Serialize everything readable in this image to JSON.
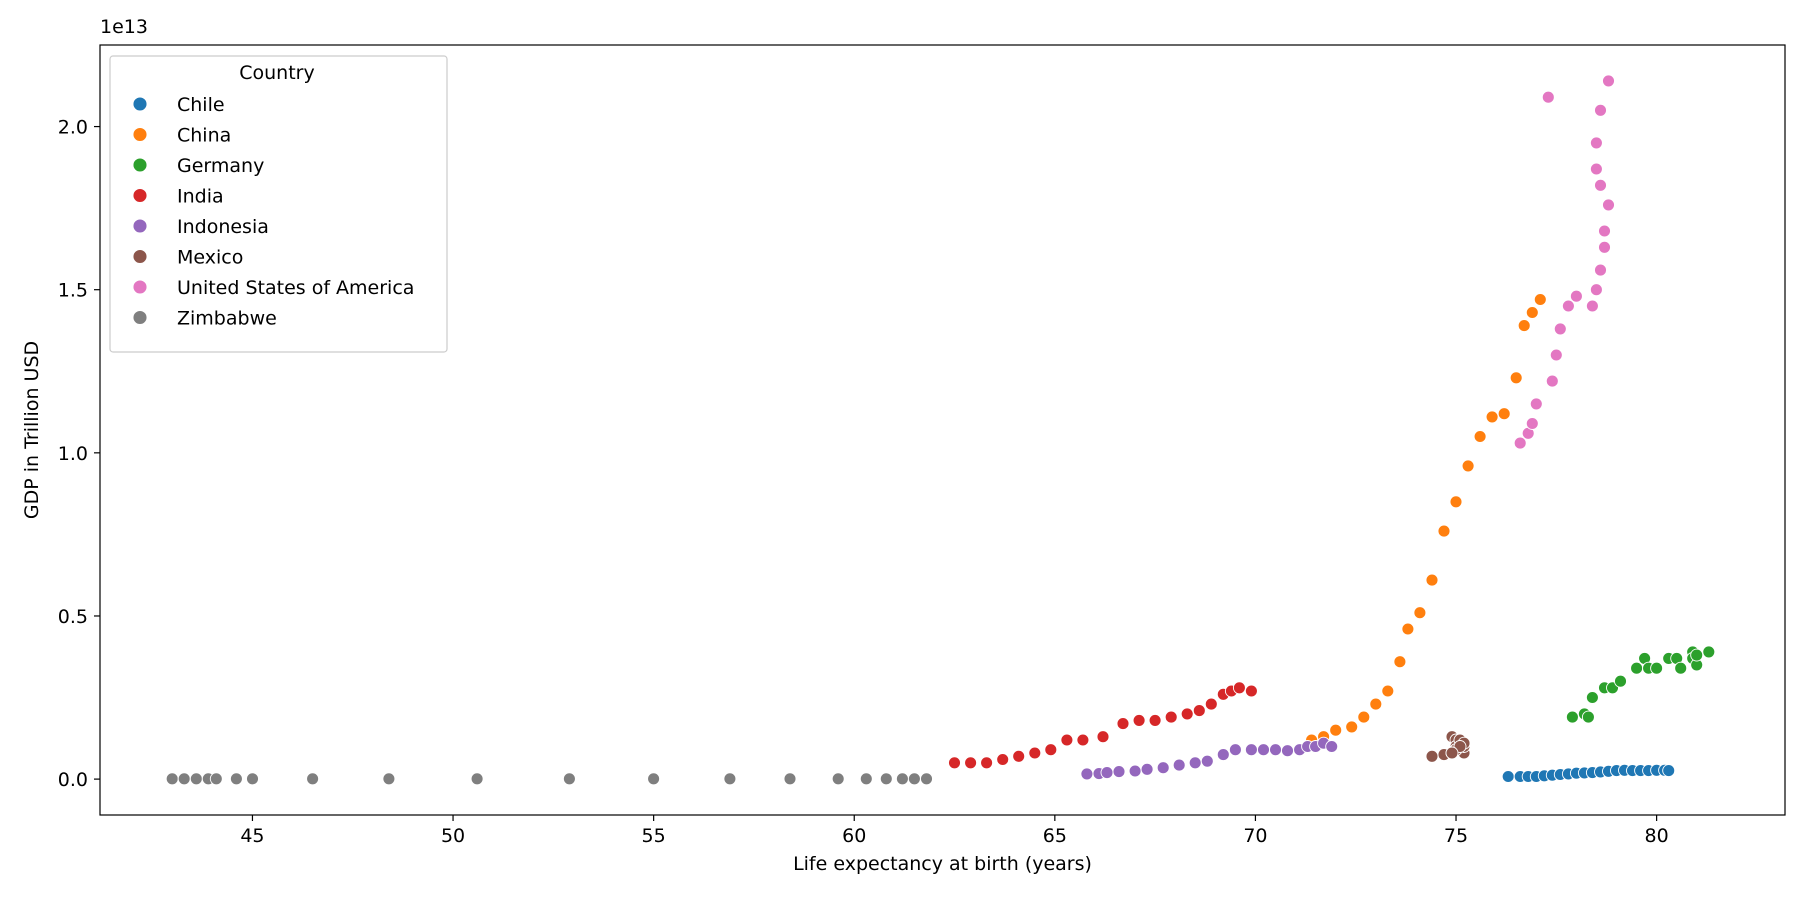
{
  "chart_data": {
    "type": "scatter",
    "title": "",
    "xlabel": "Life expectancy at birth (years)",
    "ylabel": "GDP in Trillion USD",
    "y_offset_text": "1e13",
    "xlim": [
      41.2,
      83.2
    ],
    "ylim": [
      -0.11,
      2.25
    ],
    "y_scale_factor": 10000000000000.0,
    "x_ticks": [
      45,
      50,
      55,
      60,
      65,
      70,
      75,
      80
    ],
    "y_ticks": [
      0.0,
      0.5,
      1.0,
      1.5,
      2.0
    ],
    "y_tick_labels": [
      "0.0",
      "0.5",
      "1.0",
      "1.5",
      "2.0"
    ],
    "grid": false,
    "legend": {
      "title": "Country",
      "placement": "top-left",
      "entries": [
        "Chile",
        "China",
        "Germany",
        "India",
        "Indonesia",
        "Mexico",
        "United States of America",
        "Zimbabwe"
      ]
    },
    "series": [
      {
        "name": "Chile",
        "color": "#1f77b4",
        "points": [
          [
            76.3,
            0.008
          ],
          [
            76.6,
            0.008
          ],
          [
            76.8,
            0.008
          ],
          [
            77.0,
            0.008
          ],
          [
            77.2,
            0.01
          ],
          [
            77.4,
            0.012
          ],
          [
            77.6,
            0.014
          ],
          [
            77.8,
            0.016
          ],
          [
            78.0,
            0.018
          ],
          [
            78.2,
            0.019
          ],
          [
            78.4,
            0.02
          ],
          [
            78.6,
            0.022
          ],
          [
            78.8,
            0.024
          ],
          [
            79.0,
            0.026
          ],
          [
            79.2,
            0.027
          ],
          [
            79.4,
            0.026
          ],
          [
            79.6,
            0.026
          ],
          [
            79.8,
            0.026
          ],
          [
            80.0,
            0.027
          ],
          [
            80.2,
            0.027
          ],
          [
            80.3,
            0.026
          ]
        ]
      },
      {
        "name": "China",
        "color": "#ff7f0e",
        "points": [
          [
            71.4,
            0.12
          ],
          [
            71.7,
            0.13
          ],
          [
            72.0,
            0.15
          ],
          [
            72.4,
            0.16
          ],
          [
            72.7,
            0.19
          ],
          [
            73.0,
            0.23
          ],
          [
            73.3,
            0.27
          ],
          [
            73.6,
            0.36
          ],
          [
            73.8,
            0.46
          ],
          [
            74.1,
            0.51
          ],
          [
            74.4,
            0.61
          ],
          [
            74.7,
            0.76
          ],
          [
            75.0,
            0.85
          ],
          [
            75.3,
            0.96
          ],
          [
            75.6,
            1.05
          ],
          [
            75.9,
            1.11
          ],
          [
            76.2,
            1.12
          ],
          [
            76.5,
            1.23
          ],
          [
            76.7,
            1.39
          ],
          [
            76.9,
            1.43
          ],
          [
            77.1,
            1.47
          ]
        ]
      },
      {
        "name": "Germany",
        "color": "#2ca02c",
        "points": [
          [
            77.9,
            0.19
          ],
          [
            78.2,
            0.2
          ],
          [
            78.3,
            0.19
          ],
          [
            78.4,
            0.25
          ],
          [
            78.7,
            0.28
          ],
          [
            78.9,
            0.28
          ],
          [
            79.1,
            0.3
          ],
          [
            79.5,
            0.34
          ],
          [
            79.7,
            0.37
          ],
          [
            79.8,
            0.34
          ],
          [
            80.0,
            0.34
          ],
          [
            80.3,
            0.37
          ],
          [
            80.5,
            0.37
          ],
          [
            80.6,
            0.34
          ],
          [
            80.9,
            0.39
          ],
          [
            80.9,
            0.37
          ],
          [
            81.0,
            0.35
          ],
          [
            81.0,
            0.38
          ],
          [
            81.3,
            0.39
          ]
        ]
      },
      {
        "name": "India",
        "color": "#d62728",
        "points": [
          [
            62.5,
            0.05
          ],
          [
            62.9,
            0.05
          ],
          [
            63.3,
            0.05
          ],
          [
            63.7,
            0.06
          ],
          [
            64.1,
            0.07
          ],
          [
            64.5,
            0.08
          ],
          [
            64.9,
            0.09
          ],
          [
            65.3,
            0.12
          ],
          [
            65.7,
            0.12
          ],
          [
            66.2,
            0.13
          ],
          [
            66.7,
            0.17
          ],
          [
            67.1,
            0.18
          ],
          [
            67.5,
            0.18
          ],
          [
            67.9,
            0.19
          ],
          [
            68.3,
            0.2
          ],
          [
            68.6,
            0.21
          ],
          [
            68.9,
            0.23
          ],
          [
            69.2,
            0.26
          ],
          [
            69.4,
            0.27
          ],
          [
            69.6,
            0.28
          ],
          [
            69.9,
            0.27
          ]
        ]
      },
      {
        "name": "Indonesia",
        "color": "#9467bd",
        "points": [
          [
            65.8,
            0.016
          ],
          [
            66.1,
            0.017
          ],
          [
            66.3,
            0.02
          ],
          [
            66.6,
            0.023
          ],
          [
            67.0,
            0.025
          ],
          [
            67.3,
            0.03
          ],
          [
            67.7,
            0.035
          ],
          [
            68.1,
            0.043
          ],
          [
            68.5,
            0.05
          ],
          [
            68.8,
            0.055
          ],
          [
            69.2,
            0.075
          ],
          [
            69.5,
            0.09
          ],
          [
            69.9,
            0.09
          ],
          [
            70.2,
            0.09
          ],
          [
            70.5,
            0.09
          ],
          [
            70.8,
            0.087
          ],
          [
            71.1,
            0.09
          ],
          [
            71.3,
            0.1
          ],
          [
            71.5,
            0.1
          ],
          [
            71.7,
            0.11
          ],
          [
            71.9,
            0.1
          ]
        ]
      },
      {
        "name": "Mexico",
        "color": "#8c564b",
        "points": [
          [
            74.4,
            0.07
          ],
          [
            74.7,
            0.075
          ],
          [
            74.9,
            0.08
          ],
          [
            74.9,
            0.13
          ],
          [
            75.0,
            0.12
          ],
          [
            75.1,
            0.11
          ],
          [
            75.0,
            0.1
          ],
          [
            75.1,
            0.09
          ],
          [
            75.2,
            0.08
          ],
          [
            75.0,
            0.09
          ],
          [
            75.2,
            0.1
          ],
          [
            75.1,
            0.12
          ],
          [
            75.0,
            0.09
          ],
          [
            75.2,
            0.11
          ],
          [
            75.1,
            0.1
          ],
          [
            74.9,
            0.08
          ]
        ]
      },
      {
        "name": "United States of America",
        "color": "#e377c2",
        "points": [
          [
            76.6,
            1.03
          ],
          [
            76.8,
            1.06
          ],
          [
            76.9,
            1.09
          ],
          [
            77.0,
            1.15
          ],
          [
            77.4,
            1.22
          ],
          [
            77.5,
            1.3
          ],
          [
            77.6,
            1.38
          ],
          [
            77.8,
            1.45
          ],
          [
            78.0,
            1.48
          ],
          [
            78.4,
            1.45
          ],
          [
            78.5,
            1.5
          ],
          [
            78.6,
            1.56
          ],
          [
            78.7,
            1.63
          ],
          [
            78.7,
            1.68
          ],
          [
            78.8,
            1.76
          ],
          [
            78.6,
            1.82
          ],
          [
            78.5,
            1.87
          ],
          [
            78.5,
            1.95
          ],
          [
            78.6,
            2.05
          ],
          [
            77.3,
            2.09
          ],
          [
            78.8,
            2.14
          ]
        ]
      },
      {
        "name": "Zimbabwe",
        "color": "#7f7f7f",
        "points": [
          [
            43.0,
            0.001
          ],
          [
            43.3,
            0.001
          ],
          [
            43.6,
            0.001
          ],
          [
            43.9,
            0.001
          ],
          [
            44.1,
            0.001
          ],
          [
            44.6,
            0.001
          ],
          [
            45.0,
            0.001
          ],
          [
            46.5,
            0.001
          ],
          [
            48.4,
            0.001
          ],
          [
            50.6,
            0.001
          ],
          [
            52.9,
            0.001
          ],
          [
            55.0,
            0.001
          ],
          [
            56.9,
            0.001
          ],
          [
            58.4,
            0.001
          ],
          [
            59.6,
            0.001
          ],
          [
            60.3,
            0.001
          ],
          [
            60.8,
            0.001
          ],
          [
            61.2,
            0.001
          ],
          [
            61.5,
            0.001
          ],
          [
            61.8,
            0.001
          ]
        ]
      }
    ]
  }
}
